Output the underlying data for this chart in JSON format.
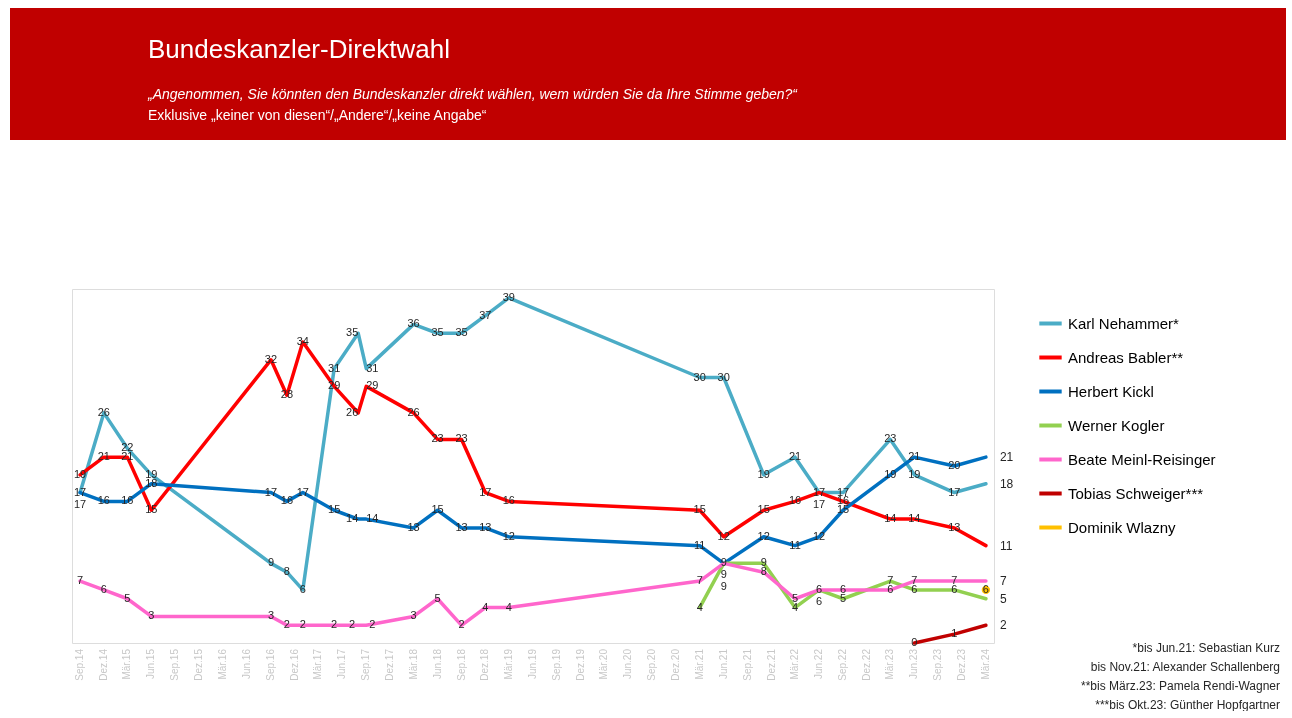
{
  "chart_data": {
    "type": "line",
    "title": "Bundeskanzler-Direktwahl",
    "subtitle": "„Angenommen, Sie könnten den Bundeskanzler direkt wählen, wem würden Sie da Ihre Stimme geben?“\nExklusive „keiner von diesen“/„Andere“/„keine  Angabe“",
    "xlim": [
      "2014-08",
      "2024-04"
    ],
    "ylim": [
      0,
      40
    ],
    "xticks": [
      {
        "value": "2014-09",
        "label": "Sep.14"
      },
      {
        "value": "2014-12",
        "label": "Dez.14"
      },
      {
        "value": "2015-03",
        "label": "Mär.15"
      },
      {
        "value": "2015-06",
        "label": "Jun.15"
      },
      {
        "value": "2015-09",
        "label": "Sep.15"
      },
      {
        "value": "2015-12",
        "label": "Dez.15"
      },
      {
        "value": "2016-03",
        "label": "Mär.16"
      },
      {
        "value": "2016-06",
        "label": "Jun.16"
      },
      {
        "value": "2016-09",
        "label": "Sep.16"
      },
      {
        "value": "2016-12",
        "label": "Dez.16"
      },
      {
        "value": "2017-03",
        "label": "Mär.17"
      },
      {
        "value": "2017-06",
        "label": "Jun.17"
      },
      {
        "value": "2017-09",
        "label": "Sep.17"
      },
      {
        "value": "2017-12",
        "label": "Dez.17"
      },
      {
        "value": "2018-03",
        "label": "Mär.18"
      },
      {
        "value": "2018-06",
        "label": "Jun.18"
      },
      {
        "value": "2018-09",
        "label": "Sep.18"
      },
      {
        "value": "2018-12",
        "label": "Dez.18"
      },
      {
        "value": "2019-03",
        "label": "Mär.19"
      },
      {
        "value": "2019-06",
        "label": "Jun.19"
      },
      {
        "value": "2019-09",
        "label": "Sep.19"
      },
      {
        "value": "2019-12",
        "label": "Dez.19"
      },
      {
        "value": "2020-03",
        "label": "Mär.20"
      },
      {
        "value": "2020-06",
        "label": "Jun.20"
      },
      {
        "value": "2020-09",
        "label": "Sep.20"
      },
      {
        "value": "2020-12",
        "label": "Dez.20"
      },
      {
        "value": "2021-03",
        "label": "Mär.21"
      },
      {
        "value": "2021-06",
        "label": "Jun.21"
      },
      {
        "value": "2021-09",
        "label": "Sep.21"
      },
      {
        "value": "2021-12",
        "label": "Dez.21"
      },
      {
        "value": "2022-03",
        "label": "Mär.22"
      },
      {
        "value": "2022-06",
        "label": "Jun.22"
      },
      {
        "value": "2022-09",
        "label": "Sep.22"
      },
      {
        "value": "2022-12",
        "label": "Dez.22"
      },
      {
        "value": "2023-03",
        "label": "Mär.23"
      },
      {
        "value": "2023-06",
        "label": "Jun.23"
      },
      {
        "value": "2023-09",
        "label": "Sep.23"
      },
      {
        "value": "2023-12",
        "label": "Dez.23"
      },
      {
        "value": "2024-03",
        "label": "Mär.24"
      }
    ],
    "tick_labels": "x",
    "grid": false,
    "legend": "right",
    "line_style": "solid",
    "data_labels": true,
    "series": [
      {
        "name": "Karl Nehammer*",
        "color": "#4bacc6",
        "x": [
          "2014-09",
          "2014-12",
          "2015-03",
          "2015-06",
          "2016-09",
          "2016-11",
          "2017-01",
          "2017-05",
          "2017-08",
          "2017-09",
          "2018-03",
          "2018-06",
          "2018-09",
          "2018-12",
          "2019-03",
          "2021-03",
          "2021-06",
          "2021-11",
          "2022-03",
          "2022-06",
          "2022-09",
          "2023-03",
          "2023-06",
          "2023-11",
          "2024-03"
        ],
        "values": [
          17,
          26,
          22,
          19,
          9,
          8,
          6,
          31,
          35,
          31,
          36,
          35,
          35,
          37,
          39,
          30,
          30,
          19,
          21,
          17,
          17,
          23,
          19,
          17,
          18
        ]
      },
      {
        "name": "Andreas Babler**",
        "color": "#ff0000",
        "x": [
          "2014-09",
          "2014-12",
          "2015-03",
          "2015-06",
          "2016-09",
          "2016-11",
          "2017-01",
          "2017-05",
          "2017-08",
          "2017-09",
          "2018-03",
          "2018-06",
          "2018-09",
          "2018-12",
          "2019-03",
          "2021-03",
          "2021-06",
          "2021-11",
          "2022-03",
          "2022-06",
          "2022-09",
          "2023-03",
          "2023-06",
          "2023-11",
          "2024-03"
        ],
        "values": [
          19,
          21,
          21,
          15,
          32,
          28,
          34,
          29,
          26,
          29,
          26,
          23,
          23,
          17,
          16,
          15,
          12,
          15,
          16,
          17,
          16,
          14,
          14,
          13,
          11
        ]
      },
      {
        "name": "Herbert Kickl",
        "color": "#0070c0",
        "x": [
          "2014-09",
          "2014-12",
          "2015-03",
          "2015-06",
          "2016-09",
          "2016-11",
          "2017-01",
          "2017-05",
          "2017-08",
          "2017-09",
          "2018-03",
          "2018-06",
          "2018-09",
          "2018-12",
          "2019-03",
          "2021-03",
          "2021-06",
          "2021-11",
          "2022-03",
          "2022-06",
          "2022-09",
          "2023-03",
          "2023-06",
          "2023-11",
          "2024-03"
        ],
        "values": [
          17,
          16,
          16,
          18,
          17,
          16,
          17,
          15,
          14,
          14,
          13,
          15,
          13,
          13,
          12,
          11,
          9,
          12,
          11,
          12,
          15,
          19,
          21,
          20,
          21
        ]
      },
      {
        "name": "Werner Kogler",
        "color": "#92d050",
        "x": [
          "2021-03",
          "2021-06",
          "2021-11",
          "2022-03",
          "2022-06",
          "2022-09",
          "2023-03",
          "2023-06",
          "2023-11",
          "2024-03"
        ],
        "values": [
          4,
          9,
          9,
          4,
          6,
          5,
          7,
          6,
          6,
          5
        ]
      },
      {
        "name": "Beate Meinl-Reisinger",
        "color": "#ff66cc",
        "x": [
          "2014-09",
          "2014-12",
          "2015-03",
          "2015-06",
          "2016-09",
          "2016-11",
          "2017-01",
          "2017-05",
          "2017-08",
          "2017-09",
          "2018-03",
          "2018-06",
          "2018-09",
          "2018-12",
          "2019-03",
          "2021-03",
          "2021-06",
          "2021-11",
          "2022-03",
          "2022-06",
          "2022-09",
          "2023-03",
          "2023-06",
          "2023-11",
          "2024-03"
        ],
        "values": [
          7,
          6,
          5,
          3,
          3,
          2,
          2,
          2,
          2,
          2,
          3,
          5,
          2,
          4,
          4,
          7,
          9,
          8,
          5,
          6,
          6,
          6,
          7,
          7,
          7
        ]
      },
      {
        "name": "Tobias Schweiger***",
        "color": "#c00000",
        "x": [
          "2023-06",
          "2023-11",
          "2024-03"
        ],
        "values": [
          0,
          1,
          2
        ]
      },
      {
        "name": "Dominik Wlazny",
        "color": "#ffc000",
        "type": "scatter",
        "x": [
          "2024-03"
        ],
        "values": [
          6
        ]
      }
    ],
    "annotations": [
      "*bis Jun.21: Sebastian Kurz",
      "bis Nov.21: Alexander Schallenberg",
      "**bis März.23: Pamela Rendi-Wagner",
      "***bis Okt.23: Günther Hopfgartner"
    ]
  }
}
